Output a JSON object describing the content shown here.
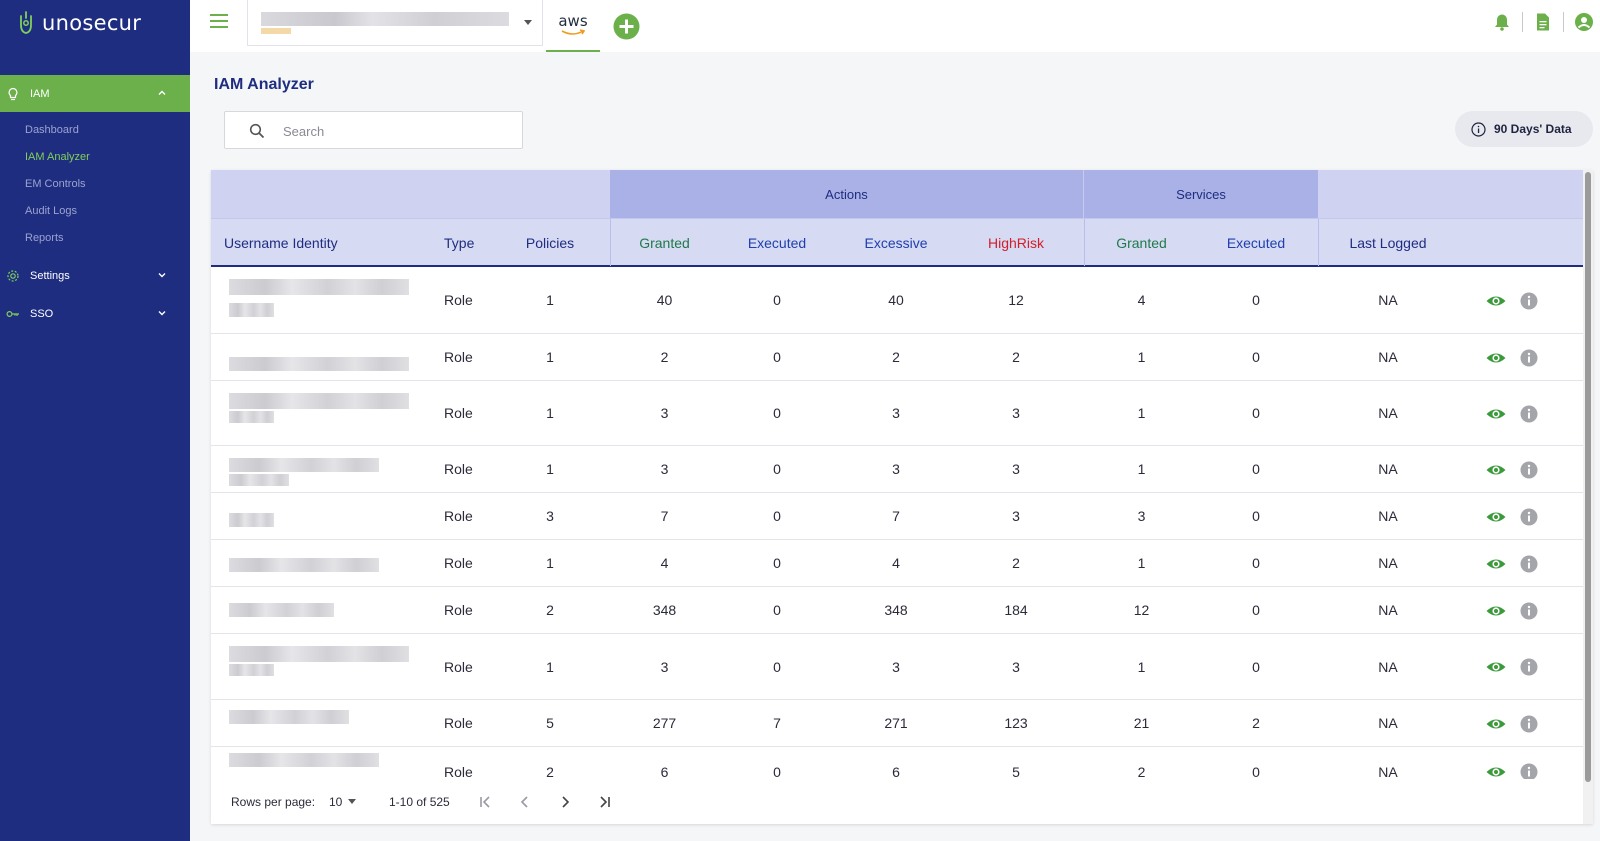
{
  "brand": {
    "name": "unosecur"
  },
  "sidebar": {
    "groups": [
      {
        "label": "IAM",
        "items": [
          "Dashboard",
          "IAM Analyzer",
          "EM Controls",
          "Audit Logs",
          "Reports"
        ]
      },
      {
        "label": "Settings"
      },
      {
        "label": "SSO"
      }
    ]
  },
  "topbar": {
    "cloud_tab": "aws"
  },
  "page": {
    "title": "IAM Analyzer"
  },
  "search": {
    "placeholder": "Search"
  },
  "days_button": "90 Days' Data",
  "table": {
    "groups": {
      "actions": "Actions",
      "services": "Services"
    },
    "headers": {
      "username": "Username Identity",
      "type": "Type",
      "policies": "Policies",
      "a_granted": "Granted",
      "a_executed": "Executed",
      "a_excessive": "Excessive",
      "a_highrisk": "HighRisk",
      "s_granted": "Granted",
      "s_executed": "Executed",
      "last_logged": "Last Logged"
    },
    "rows": [
      {
        "type": "Role",
        "policies": "1",
        "a_granted": "40",
        "a_executed": "0",
        "a_excessive": "40",
        "a_highrisk": "12",
        "s_granted": "4",
        "s_executed": "0",
        "last_logged": "NA"
      },
      {
        "type": "Role",
        "policies": "1",
        "a_granted": "2",
        "a_executed": "0",
        "a_excessive": "2",
        "a_highrisk": "2",
        "s_granted": "1",
        "s_executed": "0",
        "last_logged": "NA"
      },
      {
        "type": "Role",
        "policies": "1",
        "a_granted": "3",
        "a_executed": "0",
        "a_excessive": "3",
        "a_highrisk": "3",
        "s_granted": "1",
        "s_executed": "0",
        "last_logged": "NA"
      },
      {
        "type": "Role",
        "policies": "1",
        "a_granted": "3",
        "a_executed": "0",
        "a_excessive": "3",
        "a_highrisk": "3",
        "s_granted": "1",
        "s_executed": "0",
        "last_logged": "NA"
      },
      {
        "type": "Role",
        "policies": "3",
        "a_granted": "7",
        "a_executed": "0",
        "a_excessive": "7",
        "a_highrisk": "3",
        "s_granted": "3",
        "s_executed": "0",
        "last_logged": "NA"
      },
      {
        "type": "Role",
        "policies": "1",
        "a_granted": "4",
        "a_executed": "0",
        "a_excessive": "4",
        "a_highrisk": "2",
        "s_granted": "1",
        "s_executed": "0",
        "last_logged": "NA"
      },
      {
        "type": "Role",
        "policies": "2",
        "a_granted": "348",
        "a_executed": "0",
        "a_excessive": "348",
        "a_highrisk": "184",
        "s_granted": "12",
        "s_executed": "0",
        "last_logged": "NA"
      },
      {
        "type": "Role",
        "policies": "1",
        "a_granted": "3",
        "a_executed": "0",
        "a_excessive": "3",
        "a_highrisk": "3",
        "s_granted": "1",
        "s_executed": "0",
        "last_logged": "NA"
      },
      {
        "type": "Role",
        "policies": "5",
        "a_granted": "277",
        "a_executed": "7",
        "a_excessive": "271",
        "a_highrisk": "123",
        "s_granted": "21",
        "s_executed": "2",
        "last_logged": "NA"
      },
      {
        "type": "Role",
        "policies": "2",
        "a_granted": "6",
        "a_executed": "0",
        "a_excessive": "6",
        "a_highrisk": "5",
        "s_granted": "2",
        "s_executed": "0",
        "last_logged": "NA"
      }
    ]
  },
  "pagination": {
    "rows_per_page_label": "Rows per page:",
    "rows_per_page": "10",
    "range": "1-10 of 525"
  },
  "colors": {
    "sidebar": "#1f2d80",
    "accent_green": "#6bb04a",
    "highrisk_red": "#d21f2a",
    "header_blue": "#a9b1e6"
  }
}
